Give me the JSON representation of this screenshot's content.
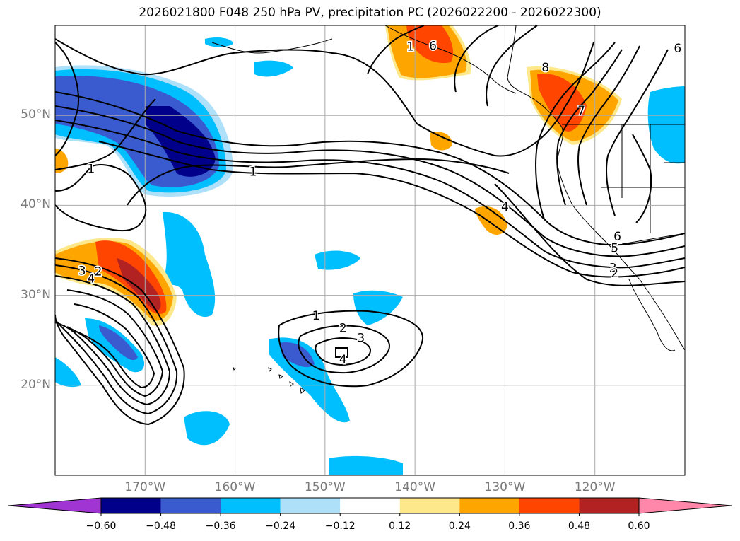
{
  "title": "2026021800 F048 250 hPa PV, precipitation PC (2026022200 - 2026022300)",
  "map": {
    "lon_range": [
      -180,
      -110
    ],
    "lat_range": [
      10,
      60
    ],
    "lat_labels": [
      {
        "lat": 50,
        "text": "50°N"
      },
      {
        "lat": 40,
        "text": "40°N"
      },
      {
        "lat": 30,
        "text": "30°N"
      },
      {
        "lat": 20,
        "text": "20°N"
      }
    ],
    "lon_labels": [
      {
        "lon": -170,
        "text": "170°W"
      },
      {
        "lon": -160,
        "text": "160°W"
      },
      {
        "lon": -150,
        "text": "150°W"
      },
      {
        "lon": -140,
        "text": "140°W"
      },
      {
        "lon": -130,
        "text": "130°W"
      },
      {
        "lon": -120,
        "text": "120°W"
      }
    ],
    "grid_lons": [
      -170,
      -160,
      -150,
      -140,
      -130,
      -120
    ],
    "grid_lats": [
      20,
      30,
      40,
      50
    ],
    "contour_labels": [
      {
        "text": "1",
        "lon": -176,
        "lat": 44
      },
      {
        "text": "1",
        "lon": -158,
        "lat": 43.7
      },
      {
        "text": "1",
        "lon": -151,
        "lat": 27.7
      },
      {
        "text": "2",
        "lon": -148,
        "lat": 26.3
      },
      {
        "text": "3",
        "lon": -146,
        "lat": 25.2
      },
      {
        "text": "4",
        "lon": -148,
        "lat": 22.8
      },
      {
        "text": "3",
        "lon": -177,
        "lat": 32.7
      },
      {
        "text": "2",
        "lon": -175.2,
        "lat": 32.6
      },
      {
        "text": "4",
        "lon": -176,
        "lat": 31.8
      },
      {
        "text": "4",
        "lon": -130,
        "lat": 39.8
      },
      {
        "text": "1",
        "lon": -140.5,
        "lat": 57.6
      },
      {
        "text": "6",
        "lon": -138,
        "lat": 57.7
      },
      {
        "text": "8",
        "lon": -125.5,
        "lat": 55.3
      },
      {
        "text": "7",
        "lon": -121.5,
        "lat": 50.5
      },
      {
        "text": "6",
        "lon": -110.8,
        "lat": 57.4
      },
      {
        "text": "6",
        "lon": -117.5,
        "lat": 36.5
      },
      {
        "text": "5",
        "lon": -117.8,
        "lat": 35.2
      },
      {
        "text": "3",
        "lon": -118,
        "lat": 33
      },
      {
        "text": "2",
        "lon": -117.8,
        "lat": 32.4
      }
    ]
  },
  "colorbar": {
    "levels": [
      "−0.60",
      "−0.48",
      "−0.36",
      "−0.24",
      "−0.12",
      "0.12",
      "0.24",
      "0.36",
      "0.48",
      "0.60"
    ],
    "colors": [
      "#a135d4",
      "#00008b",
      "#3a5bd0",
      "#00bfff",
      "#aee0fa",
      "#ffffff",
      "#fde98c",
      "#ffa500",
      "#ff4500",
      "#b22222",
      "#ff88aa"
    ]
  }
}
